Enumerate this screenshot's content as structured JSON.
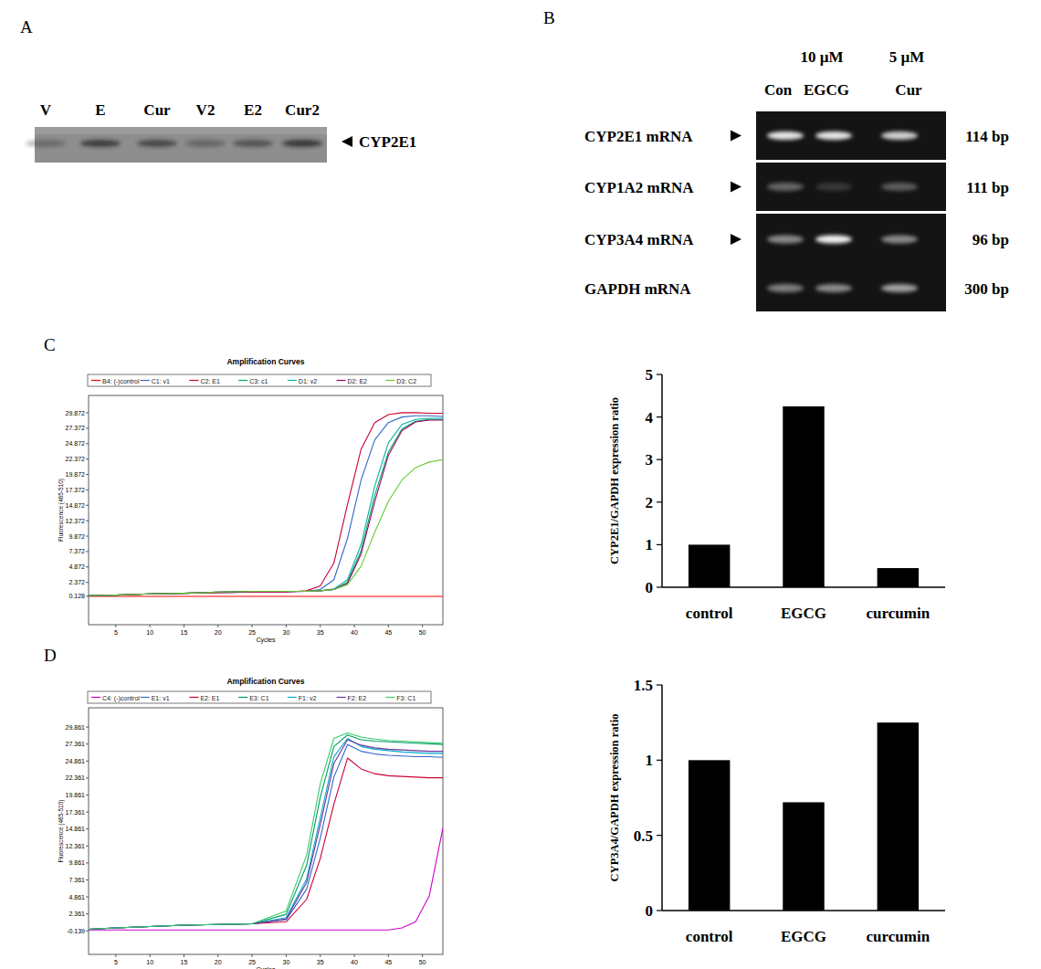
{
  "panels": [
    "A",
    "B",
    "C",
    "D"
  ],
  "western_blot": {
    "lanes": [
      "V",
      "E",
      "Cur",
      "V2",
      "E2",
      "Cur2"
    ],
    "intensities": [
      0.3,
      0.7,
      0.6,
      0.35,
      0.5,
      0.75
    ],
    "label": "CYP2E1"
  },
  "rt_pcr_gel": {
    "doses": [
      null,
      "10 µM",
      "5 µM"
    ],
    "lanes": [
      "Con",
      "EGCG",
      "Cur"
    ],
    "rows": [
      {
        "label": "CYP2E1 mRNA",
        "size": "114 bp",
        "intensities": [
          0.9,
          0.9,
          0.8
        ],
        "marker": "arrow"
      },
      {
        "label": "CYP1A2 mRNA",
        "size": "111 bp",
        "intensities": [
          0.35,
          0.15,
          0.3
        ],
        "marker": "arrow"
      },
      {
        "label": "CYP3A4 mRNA",
        "size": "96 bp",
        "intensities": [
          0.5,
          0.95,
          0.5
        ],
        "marker": "arrow"
      },
      {
        "label": "GAPDH mRNA",
        "size": "300 bp",
        "intensities": [
          0.45,
          0.5,
          0.6
        ],
        "marker": "none"
      }
    ]
  },
  "chart_data": [
    {
      "type": "line",
      "title": "Amplification Curves",
      "xlabel": "Cycles",
      "ylabel": "Fluorescence (465-510)",
      "legend": "top",
      "grid": false,
      "xlim": [
        1,
        53
      ],
      "xticks": [
        5,
        10,
        15,
        20,
        25,
        30,
        35,
        40,
        45,
        50
      ],
      "ylim": [
        -4.5,
        32.7
      ],
      "yticks": [
        0.128,
        2.372,
        4.872,
        7.372,
        9.872,
        12.372,
        14.872,
        17.372,
        19.872,
        22.372,
        24.872,
        27.372,
        29.872
      ],
      "x": [
        1,
        5,
        10,
        15,
        20,
        25,
        30,
        33,
        35,
        37,
        39,
        41,
        43,
        45,
        47,
        49,
        51,
        53
      ],
      "series": [
        {
          "name": "B4: (-)control",
          "color": "#ff0000",
          "values": [
            0.1,
            0.1,
            0.1,
            0.1,
            0.1,
            0.1,
            0.1,
            0.1,
            0.1,
            0.1,
            0.1,
            0.1,
            0.1,
            0.1,
            0.1,
            0.1,
            0.1,
            0.1
          ]
        },
        {
          "name": "C1: v1",
          "color": "#3366cc",
          "values": [
            0.2,
            0.3,
            0.5,
            0.6,
            0.7,
            0.8,
            0.8,
            0.9,
            1.2,
            2.8,
            9.5,
            19,
            25.5,
            28.3,
            29.2,
            29.4,
            29.4,
            29.3
          ]
        },
        {
          "name": "C2: E1",
          "color": "#cc0033",
          "values": [
            0.2,
            0.3,
            0.5,
            0.6,
            0.7,
            0.8,
            0.8,
            1.0,
            1.8,
            5.5,
            15,
            24,
            28.3,
            29.6,
            29.9,
            29.9,
            29.8,
            29.8
          ]
        },
        {
          "name": "C3: c1",
          "color": "#00aa66",
          "values": [
            0.2,
            0.3,
            0.5,
            0.6,
            0.8,
            0.9,
            0.9,
            0.9,
            1.0,
            1.2,
            2.4,
            7.5,
            16.5,
            23.5,
            27.3,
            28.5,
            28.8,
            28.8
          ]
        },
        {
          "name": "D1: v2",
          "color": "#00b3a0",
          "values": [
            0.2,
            0.3,
            0.5,
            0.6,
            0.8,
            0.9,
            0.9,
            0.9,
            1.0,
            1.3,
            2.8,
            8.5,
            18,
            25,
            28,
            28.8,
            29,
            29
          ]
        },
        {
          "name": "D2: E2",
          "color": "#990066",
          "values": [
            0.2,
            0.3,
            0.5,
            0.6,
            0.8,
            0.9,
            0.9,
            0.9,
            1.0,
            1.2,
            2.2,
            7,
            15.5,
            23,
            27,
            28.4,
            28.7,
            28.7
          ]
        },
        {
          "name": "D3: C2",
          "color": "#66cc33",
          "values": [
            0.2,
            0.3,
            0.5,
            0.6,
            0.8,
            0.9,
            0.9,
            0.9,
            1.0,
            1.2,
            2.0,
            5.0,
            10.5,
            15.5,
            19,
            21,
            21.9,
            22.3
          ]
        }
      ]
    },
    {
      "type": "bar",
      "ylabel": "CYP2E1/GAPDH expression ratio",
      "categories": [
        "control",
        "EGCG",
        "curcumin"
      ],
      "values": [
        1,
        4.25,
        0.45
      ],
      "color": "#000000",
      "ylim": [
        0,
        5
      ],
      "yticks": [
        0,
        1,
        2,
        3,
        4,
        5
      ],
      "grid": false
    },
    {
      "type": "line",
      "title": "Amplification Curves",
      "xlabel": "Cycles",
      "ylabel": "Fluorescence (465-510)",
      "legend": "top",
      "grid": false,
      "xlim": [
        1,
        53
      ],
      "xticks": [
        5,
        10,
        15,
        20,
        25,
        30,
        35,
        40,
        45,
        50
      ],
      "ylim": [
        -3.6,
        32.7
      ],
      "yticks": [
        -0.139,
        2.361,
        4.861,
        7.361,
        9.861,
        12.361,
        14.861,
        17.361,
        19.861,
        22.361,
        24.861,
        27.361,
        29.861
      ],
      "x": [
        1,
        5,
        10,
        15,
        20,
        25,
        30,
        33,
        35,
        37,
        39,
        41,
        43,
        45,
        47,
        49,
        51,
        53
      ],
      "series": [
        {
          "name": "C4: (-)control",
          "color": "#cc00cc",
          "values": [
            0,
            0,
            0,
            0,
            0,
            0,
            0,
            0,
            0,
            0,
            0,
            0,
            0,
            0,
            0.3,
            1.2,
            5,
            15
          ]
        },
        {
          "name": "E1: v1",
          "color": "#3366cc",
          "values": [
            0.1,
            0.3,
            0.5,
            0.7,
            0.8,
            0.9,
            1.5,
            6,
            13.5,
            22.5,
            27.3,
            26.3,
            25.9,
            25.7,
            25.6,
            25.5,
            25.5,
            25.4
          ]
        },
        {
          "name": "E2: E1",
          "color": "#cc0033",
          "values": [
            0.1,
            0.3,
            0.5,
            0.7,
            0.8,
            0.9,
            1.2,
            4.5,
            10.5,
            18.5,
            25.3,
            23.7,
            23,
            22.7,
            22.6,
            22.5,
            22.4,
            22.4
          ]
        },
        {
          "name": "E3: C1",
          "color": "#009966",
          "values": [
            0.1,
            0.3,
            0.5,
            0.7,
            0.8,
            0.9,
            2.3,
            9.5,
            19.5,
            27,
            28.7,
            28,
            27.8,
            27.7,
            27.6,
            27.5,
            27.4,
            27.3
          ]
        },
        {
          "name": "F1: v2",
          "color": "#00aacc",
          "values": [
            0.1,
            0.3,
            0.5,
            0.7,
            0.8,
            0.9,
            1.8,
            7.5,
            16.5,
            25.5,
            28.2,
            27,
            26.6,
            26.4,
            26.2,
            26.1,
            26,
            26
          ]
        },
        {
          "name": "F2: E2",
          "color": "#663399",
          "values": [
            0.1,
            0.3,
            0.5,
            0.7,
            0.8,
            0.9,
            1.6,
            7,
            15.5,
            24.5,
            28,
            27.2,
            26.8,
            26.6,
            26.5,
            26.4,
            26.3,
            26.3
          ]
        },
        {
          "name": "F3: C1",
          "color": "#33cc66",
          "values": [
            0.1,
            0.3,
            0.5,
            0.7,
            0.8,
            0.9,
            2.8,
            11,
            21.5,
            28.2,
            29,
            28.4,
            28.1,
            27.9,
            27.8,
            27.7,
            27.6,
            27.5
          ]
        }
      ]
    },
    {
      "type": "bar",
      "ylabel": "CYP3A4/GAPDH expression ratio",
      "categories": [
        "control",
        "EGCG",
        "curcumin"
      ],
      "values": [
        1,
        0.72,
        1.25
      ],
      "color": "#000000",
      "ylim": [
        0,
        1.5
      ],
      "yticks": [
        0,
        0.5,
        1,
        1.5
      ],
      "grid": false
    }
  ]
}
